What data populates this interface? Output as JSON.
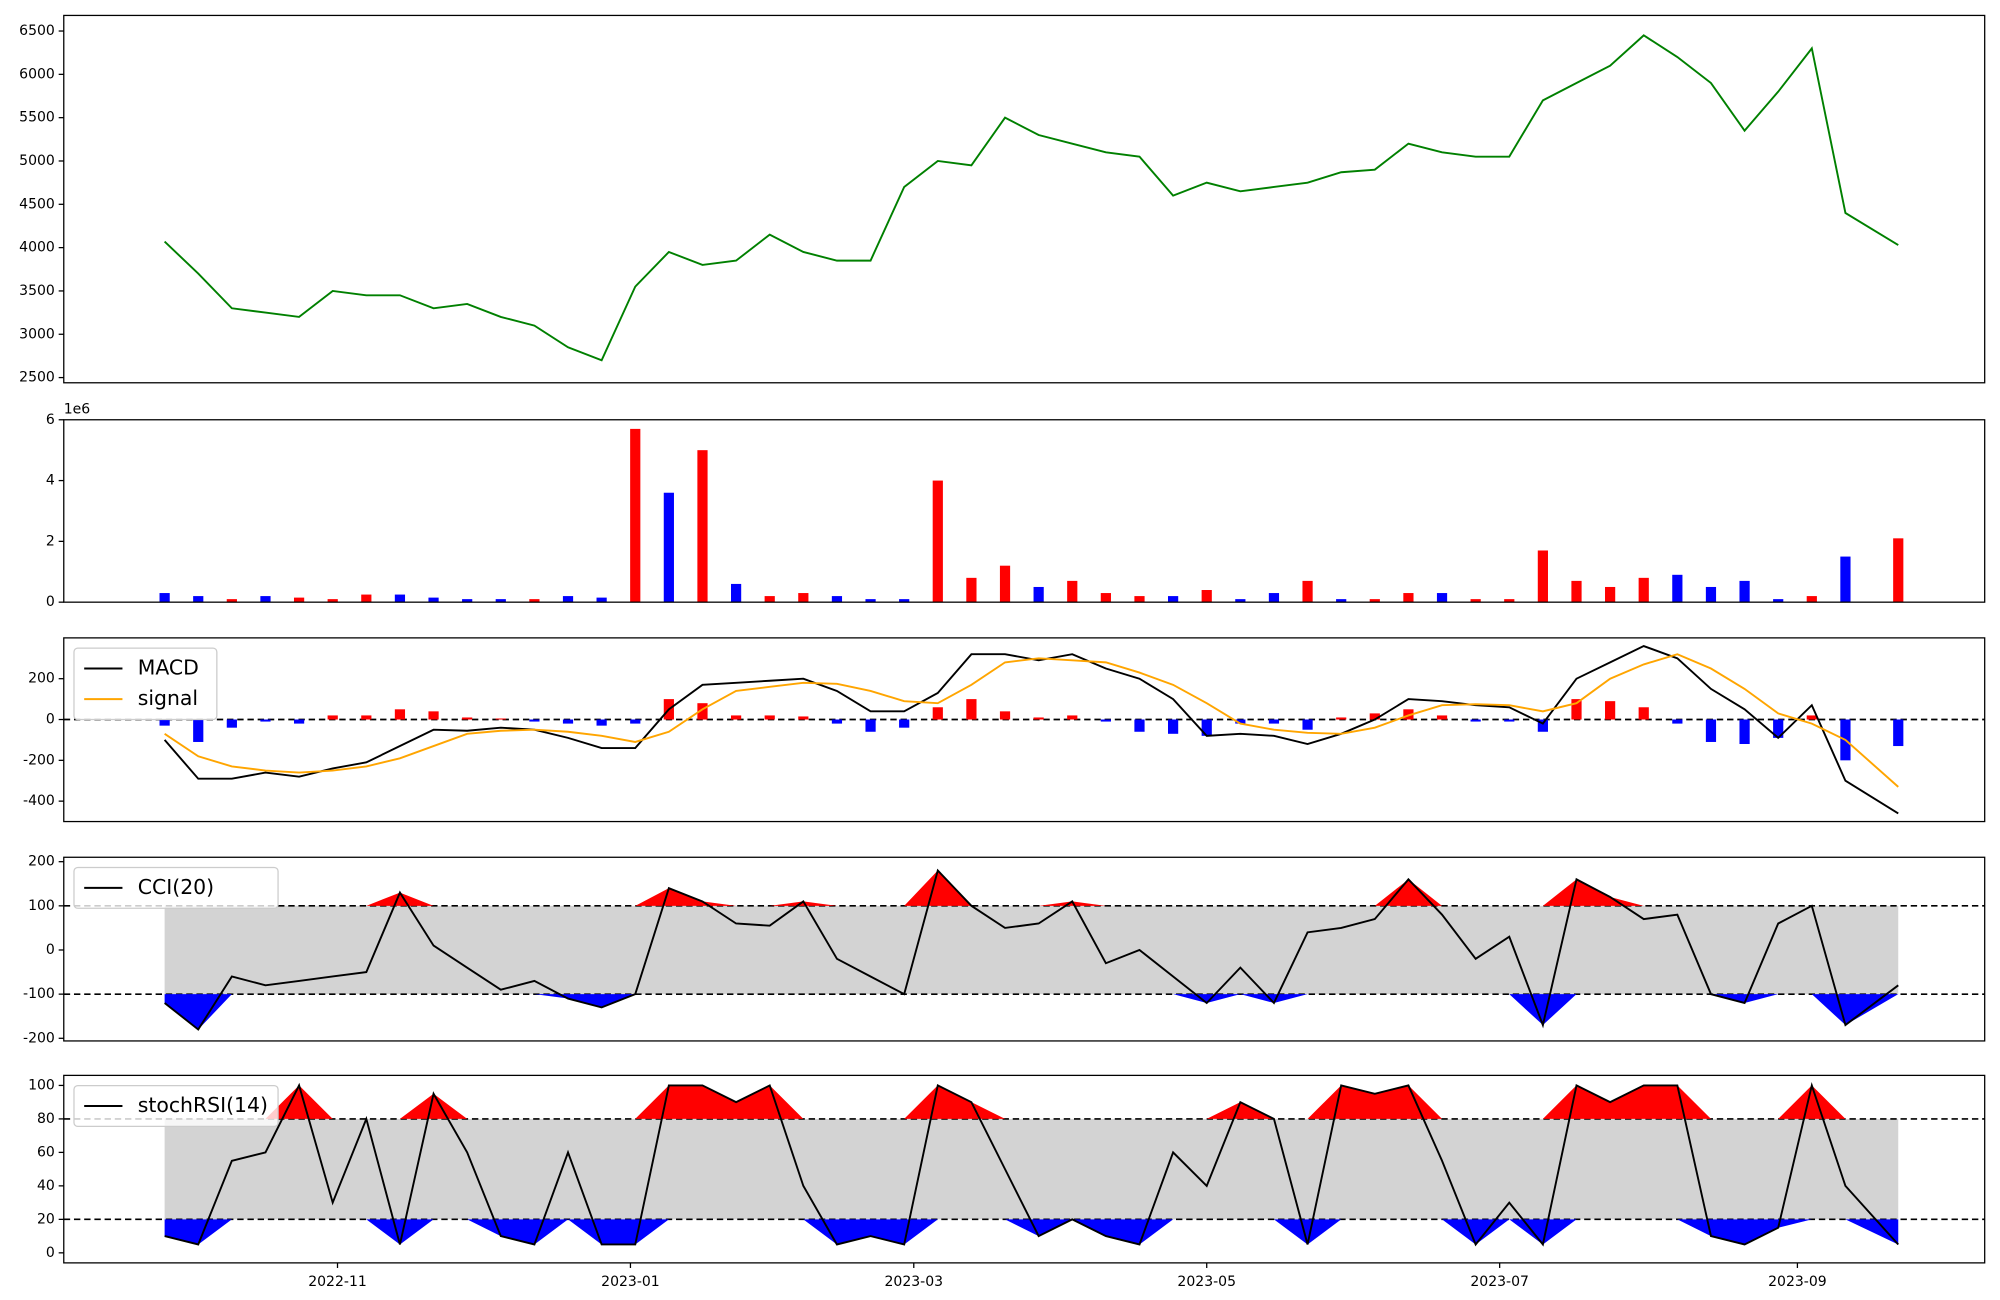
{
  "chart_data": [
    {
      "type": "line",
      "x": [
        "2022-09-26",
        "2022-10-03",
        "2022-10-10",
        "2022-10-17",
        "2022-10-24",
        "2022-10-31",
        "2022-11-07",
        "2022-11-14",
        "2022-11-21",
        "2022-11-28",
        "2022-12-05",
        "2022-12-12",
        "2022-12-19",
        "2022-12-26",
        "2023-01-02",
        "2023-01-09",
        "2023-01-16",
        "2023-01-23",
        "2023-01-30",
        "2023-02-06",
        "2023-02-13",
        "2023-02-20",
        "2023-02-27",
        "2023-03-06",
        "2023-03-13",
        "2023-03-20",
        "2023-03-27",
        "2023-04-03",
        "2023-04-10",
        "2023-04-17",
        "2023-04-24",
        "2023-05-01",
        "2023-05-08",
        "2023-05-15",
        "2023-05-22",
        "2023-05-29",
        "2023-06-05",
        "2023-06-12",
        "2023-06-19",
        "2023-06-26",
        "2023-07-03",
        "2023-07-10",
        "2023-07-17",
        "2023-07-24",
        "2023-07-31",
        "2023-08-07",
        "2023-08-14",
        "2023-08-21",
        "2023-08-28",
        "2023-09-04",
        "2023-09-11",
        "2023-09-22"
      ],
      "series": [
        {
          "color": "green",
          "values": [
            4070,
            3700,
            3300,
            3250,
            3200,
            3500,
            3450,
            3450,
            3300,
            3350,
            3200,
            3100,
            2850,
            2700,
            3550,
            3950,
            3800,
            3850,
            4150,
            3950,
            3850,
            3850,
            4700,
            5000,
            4950,
            5500,
            5300,
            5200,
            5100,
            5050,
            4600,
            4750,
            4650,
            4700,
            4750,
            4870,
            4900,
            5200,
            5100,
            5050,
            5050,
            5700,
            5900,
            6100,
            6450,
            6200,
            5900,
            5350,
            5800,
            6300,
            4400,
            4030
          ]
        }
      ],
      "xlim": [
        "2022-09-05",
        "2023-10-10"
      ],
      "ylim": [
        2440,
        6680
      ],
      "yticks": [
        2500,
        3000,
        3500,
        4000,
        4500,
        5000,
        5500,
        6000,
        6500
      ]
    },
    {
      "type": "bar",
      "x": [
        "2022-09-26",
        "2022-10-03",
        "2022-10-10",
        "2022-10-17",
        "2022-10-24",
        "2022-10-31",
        "2022-11-07",
        "2022-11-14",
        "2022-11-21",
        "2022-11-28",
        "2022-12-05",
        "2022-12-12",
        "2022-12-19",
        "2022-12-26",
        "2023-01-02",
        "2023-01-09",
        "2023-01-16",
        "2023-01-23",
        "2023-01-30",
        "2023-02-06",
        "2023-02-13",
        "2023-02-20",
        "2023-02-27",
        "2023-03-06",
        "2023-03-13",
        "2023-03-20",
        "2023-03-27",
        "2023-04-03",
        "2023-04-10",
        "2023-04-17",
        "2023-04-24",
        "2023-05-01",
        "2023-05-08",
        "2023-05-15",
        "2023-05-22",
        "2023-05-29",
        "2023-06-05",
        "2023-06-12",
        "2023-06-19",
        "2023-06-26",
        "2023-07-03",
        "2023-07-10",
        "2023-07-17",
        "2023-07-24",
        "2023-07-31",
        "2023-08-07",
        "2023-08-14",
        "2023-08-21",
        "2023-08-28",
        "2023-09-04",
        "2023-09-11",
        "2023-09-22"
      ],
      "series": [
        {
          "values": [
            0.3,
            0.2,
            0.1,
            0.2,
            0.15,
            0.1,
            0.25,
            0.25,
            0.15,
            0.1,
            0.1,
            0.1,
            0.2,
            0.15,
            5.7,
            3.6,
            5.0,
            0.6,
            0.2,
            0.3,
            0.2,
            0.1,
            0.1,
            4.0,
            0.8,
            1.2,
            0.5,
            0.7,
            0.3,
            0.2,
            0.2,
            0.4,
            0.1,
            0.3,
            0.7,
            0.1,
            0.1,
            0.3,
            0.3,
            0.1,
            0.1,
            1.7,
            0.7,
            0.5,
            0.8,
            0.9,
            0.5,
            0.7,
            0.1,
            0.2,
            1.5,
            2.1
          ],
          "colors": [
            "blue",
            "blue",
            "red",
            "blue",
            "red",
            "red",
            "red",
            "blue",
            "blue",
            "blue",
            "blue",
            "red",
            "blue",
            "blue",
            "red",
            "blue",
            "red",
            "blue",
            "red",
            "red",
            "blue",
            "blue",
            "blue",
            "red",
            "red",
            "red",
            "blue",
            "red",
            "red",
            "red",
            "blue",
            "red",
            "blue",
            "blue",
            "red",
            "blue",
            "red",
            "red",
            "blue",
            "red",
            "red",
            "red",
            "red",
            "red",
            "red",
            "blue",
            "blue",
            "blue",
            "blue",
            "red",
            "blue",
            "red"
          ]
        }
      ],
      "scale_label": "1e6",
      "xlim": [
        "2022-09-05",
        "2023-10-10"
      ],
      "ylim": [
        0,
        6
      ],
      "yticks": [
        0,
        2,
        4,
        6
      ]
    },
    {
      "type": "macd",
      "x": [
        "2022-09-26",
        "2022-10-03",
        "2022-10-10",
        "2022-10-17",
        "2022-10-24",
        "2022-10-31",
        "2022-11-07",
        "2022-11-14",
        "2022-11-21",
        "2022-11-28",
        "2022-12-05",
        "2022-12-12",
        "2022-12-19",
        "2022-12-26",
        "2023-01-02",
        "2023-01-09",
        "2023-01-16",
        "2023-01-23",
        "2023-01-30",
        "2023-02-06",
        "2023-02-13",
        "2023-02-20",
        "2023-02-27",
        "2023-03-06",
        "2023-03-13",
        "2023-03-20",
        "2023-03-27",
        "2023-04-03",
        "2023-04-10",
        "2023-04-17",
        "2023-04-24",
        "2023-05-01",
        "2023-05-08",
        "2023-05-15",
        "2023-05-22",
        "2023-05-29",
        "2023-06-05",
        "2023-06-12",
        "2023-06-19",
        "2023-06-26",
        "2023-07-03",
        "2023-07-10",
        "2023-07-17",
        "2023-07-24",
        "2023-07-31",
        "2023-08-07",
        "2023-08-14",
        "2023-08-21",
        "2023-08-28",
        "2023-09-04",
        "2023-09-11",
        "2023-09-22"
      ],
      "series": [
        {
          "name": "MACD",
          "color": "black",
          "values": [
            -100,
            -290,
            -290,
            -260,
            -280,
            -240,
            -210,
            -130,
            -50,
            -55,
            -40,
            -50,
            -90,
            -140,
            -140,
            50,
            170,
            180,
            190,
            200,
            140,
            40,
            40,
            130,
            320,
            320,
            290,
            320,
            250,
            200,
            100,
            -80,
            -70,
            -80,
            -120,
            -70,
            0,
            100,
            90,
            70,
            60,
            -20,
            200,
            280,
            360,
            300,
            150,
            50,
            -90,
            70,
            -300,
            -460
          ]
        },
        {
          "name": "signal",
          "color": "orange",
          "values": [
            -70,
            -180,
            -230,
            -250,
            -260,
            -250,
            -230,
            -190,
            -130,
            -70,
            -55,
            -50,
            -60,
            -80,
            -110,
            -60,
            50,
            140,
            160,
            180,
            175,
            140,
            90,
            80,
            170,
            280,
            300,
            290,
            280,
            230,
            170,
            80,
            -20,
            -50,
            -65,
            -70,
            -40,
            20,
            70,
            75,
            70,
            40,
            80,
            200,
            270,
            320,
            250,
            150,
            30,
            -20,
            -100,
            -330
          ]
        },
        {
          "kind": "bar",
          "pos_color": "red",
          "neg_color": "blue",
          "values": [
            -30,
            -110,
            -40,
            -10,
            -20,
            20,
            20,
            50,
            40,
            10,
            5,
            -10,
            -20,
            -30,
            -20,
            100,
            80,
            20,
            20,
            15,
            -20,
            -60,
            -40,
            60,
            100,
            40,
            10,
            20,
            -10,
            -60,
            -70,
            -80,
            -20,
            -20,
            -50,
            10,
            30,
            50,
            20,
            -10,
            -10,
            -60,
            100,
            90,
            60,
            -20,
            -110,
            -120,
            -90,
            20,
            -200,
            -130
          ]
        }
      ],
      "hlines": [
        0
      ],
      "legend": "upper left",
      "xlim": [
        "2022-09-05",
        "2023-10-10"
      ],
      "ylim": [
        -500,
        400
      ],
      "yticks": [
        -400,
        -200,
        0,
        200
      ]
    },
    {
      "type": "oscillator",
      "x": [
        "2022-09-26",
        "2022-10-03",
        "2022-10-10",
        "2022-10-17",
        "2022-10-24",
        "2022-10-31",
        "2022-11-07",
        "2022-11-14",
        "2022-11-21",
        "2022-11-28",
        "2022-12-05",
        "2022-12-12",
        "2022-12-19",
        "2022-12-26",
        "2023-01-02",
        "2023-01-09",
        "2023-01-16",
        "2023-01-23",
        "2023-01-30",
        "2023-02-06",
        "2023-02-13",
        "2023-02-20",
        "2023-02-27",
        "2023-03-06",
        "2023-03-13",
        "2023-03-20",
        "2023-03-27",
        "2023-04-03",
        "2023-04-10",
        "2023-04-17",
        "2023-04-24",
        "2023-05-01",
        "2023-05-08",
        "2023-05-15",
        "2023-05-22",
        "2023-05-29",
        "2023-06-05",
        "2023-06-12",
        "2023-06-19",
        "2023-06-26",
        "2023-07-03",
        "2023-07-10",
        "2023-07-17",
        "2023-07-24",
        "2023-07-31",
        "2023-08-07",
        "2023-08-14",
        "2023-08-21",
        "2023-08-28",
        "2023-09-04",
        "2023-09-11",
        "2023-09-22"
      ],
      "series": [
        {
          "name": "CCI(20)",
          "color": "black",
          "values": [
            -120,
            -180,
            -60,
            -80,
            -70,
            -60,
            -50,
            130,
            10,
            -40,
            -90,
            -70,
            -110,
            -130,
            -100,
            140,
            110,
            60,
            55,
            110,
            -20,
            -60,
            -100,
            180,
            100,
            50,
            60,
            110,
            -30,
            0,
            -60,
            -120,
            -40,
            -120,
            40,
            50,
            70,
            160,
            80,
            -20,
            30,
            -170,
            160,
            120,
            70,
            80,
            -100,
            -120,
            60,
            100,
            -170,
            -80
          ]
        }
      ],
      "band": [
        -100,
        100
      ],
      "band_color": "lightgray",
      "upper_fill": "red",
      "lower_fill": "blue",
      "hlines": [
        -100,
        100
      ],
      "legend": "upper left",
      "xlim": [
        "2022-09-05",
        "2023-10-10"
      ],
      "ylim": [
        -206,
        210
      ],
      "yticks": [
        -200,
        -100,
        0,
        100,
        200
      ]
    },
    {
      "type": "oscillator",
      "x": [
        "2022-09-26",
        "2022-10-03",
        "2022-10-10",
        "2022-10-17",
        "2022-10-24",
        "2022-10-31",
        "2022-11-07",
        "2022-11-14",
        "2022-11-21",
        "2022-11-28",
        "2022-12-05",
        "2022-12-12",
        "2022-12-19",
        "2022-12-26",
        "2023-01-02",
        "2023-01-09",
        "2023-01-16",
        "2023-01-23",
        "2023-01-30",
        "2023-02-06",
        "2023-02-13",
        "2023-02-20",
        "2023-02-27",
        "2023-03-06",
        "2023-03-13",
        "2023-03-20",
        "2023-03-27",
        "2023-04-03",
        "2023-04-10",
        "2023-04-17",
        "2023-04-24",
        "2023-05-01",
        "2023-05-08",
        "2023-05-15",
        "2023-05-22",
        "2023-05-29",
        "2023-06-05",
        "2023-06-12",
        "2023-06-19",
        "2023-06-26",
        "2023-07-03",
        "2023-07-10",
        "2023-07-17",
        "2023-07-24",
        "2023-07-31",
        "2023-08-07",
        "2023-08-14",
        "2023-08-21",
        "2023-08-28",
        "2023-09-04",
        "2023-09-11",
        "2023-09-22"
      ],
      "series": [
        {
          "name": "stochRSI(14)",
          "color": "black",
          "values": [
            10,
            5,
            55,
            60,
            100,
            30,
            80,
            5,
            95,
            60,
            10,
            5,
            60,
            5,
            5,
            100,
            100,
            90,
            100,
            40,
            5,
            10,
            5,
            100,
            90,
            50,
            10,
            20,
            10,
            5,
            60,
            40,
            90,
            80,
            5,
            100,
            95,
            100,
            55,
            5,
            30,
            5,
            100,
            90,
            100,
            100,
            10,
            5,
            15,
            100,
            40,
            5
          ]
        }
      ],
      "band": [
        20,
        80
      ],
      "band_color": "lightgray",
      "upper_fill": "red",
      "lower_fill": "blue",
      "hlines": [
        20,
        80
      ],
      "legend": "upper left",
      "xlim": [
        "2022-09-05",
        "2023-10-10"
      ],
      "ylim": [
        -6,
        106
      ],
      "yticks": [
        0,
        20,
        40,
        60,
        80,
        100
      ],
      "xticks": [
        "2022-11",
        "2023-01",
        "2023-03",
        "2023-05",
        "2023-07",
        "2023-09"
      ]
    }
  ]
}
